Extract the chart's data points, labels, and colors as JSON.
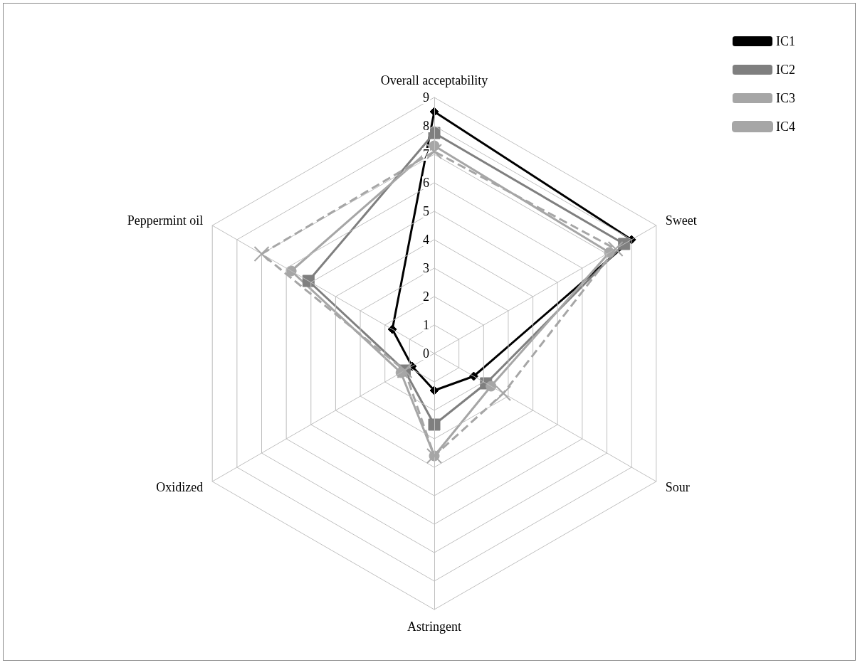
{
  "chart_data": {
    "type": "radar",
    "categories": [
      "Overall acceptability",
      "Sweet",
      "Sour",
      "Astringent",
      "Oxidized",
      "Peppermint oil"
    ],
    "ylim": [
      0,
      9
    ],
    "yticks": [
      0,
      1,
      2,
      3,
      4,
      5,
      6,
      7,
      8,
      9
    ],
    "grid": true,
    "legend": "top right",
    "series": [
      {
        "name": "IC1",
        "color": "#000000",
        "marker": "diamond",
        "line_style": "solid",
        "values": [
          8.5,
          8.0,
          1.6,
          1.3,
          0.9,
          1.7
        ]
      },
      {
        "name": "IC2",
        "color": "#7f7f7f",
        "marker": "square",
        "line_style": "solid",
        "values": [
          7.75,
          7.7,
          2.1,
          2.5,
          1.2,
          5.1
        ]
      },
      {
        "name": "IC3",
        "color": "#a6a6a6",
        "marker": "circle",
        "line_style": "solid",
        "values": [
          7.3,
          7.1,
          2.3,
          3.6,
          1.35,
          5.8
        ]
      },
      {
        "name": "IC4",
        "color": "#a6a6a6",
        "marker": "cross",
        "line_style": "dashed",
        "values": [
          7.1,
          7.35,
          2.8,
          3.6,
          1.2,
          7.0
        ]
      }
    ]
  }
}
